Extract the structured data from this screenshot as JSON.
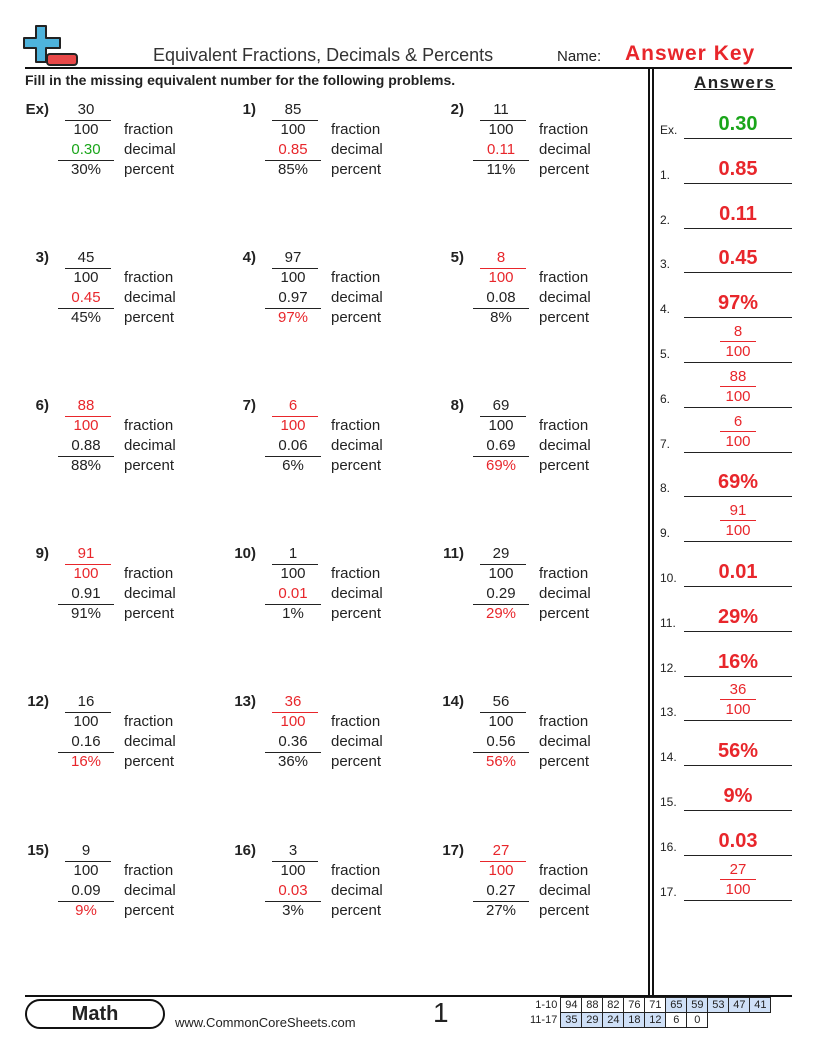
{
  "header": {
    "title": "Equivalent Fractions, Decimals & Percents",
    "name_label": "Name:",
    "name_value": "Answer Key",
    "logo": "plus-minus-logo"
  },
  "instructions": "Fill in the missing equivalent number for the following problems.",
  "words": {
    "fraction": "fraction",
    "decimal": "decimal",
    "percent": "percent"
  },
  "colors": {
    "answer": "#e8262b",
    "example": "#1aa51a",
    "score_highlight": "#cfe0f7"
  },
  "problems": [
    {
      "label": "Ex)",
      "num": "30",
      "den": "100",
      "dec": "0.30",
      "pct": "30%",
      "answer": "dec",
      "example": true
    },
    {
      "label": "1)",
      "num": "85",
      "den": "100",
      "dec": "0.85",
      "pct": "85%",
      "answer": "dec"
    },
    {
      "label": "2)",
      "num": "11",
      "den": "100",
      "dec": "0.11",
      "pct": "11%",
      "answer": "dec"
    },
    {
      "label": "3)",
      "num": "45",
      "den": "100",
      "dec": "0.45",
      "pct": "45%",
      "answer": "dec"
    },
    {
      "label": "4)",
      "num": "97",
      "den": "100",
      "dec": "0.97",
      "pct": "97%",
      "answer": "pct"
    },
    {
      "label": "5)",
      "num": "8",
      "den": "100",
      "dec": "0.08",
      "pct": "8%",
      "answer": "frac"
    },
    {
      "label": "6)",
      "num": "88",
      "den": "100",
      "dec": "0.88",
      "pct": "88%",
      "answer": "frac"
    },
    {
      "label": "7)",
      "num": "6",
      "den": "100",
      "dec": "0.06",
      "pct": "6%",
      "answer": "frac"
    },
    {
      "label": "8)",
      "num": "69",
      "den": "100",
      "dec": "0.69",
      "pct": "69%",
      "answer": "pct"
    },
    {
      "label": "9)",
      "num": "91",
      "den": "100",
      "dec": "0.91",
      "pct": "91%",
      "answer": "frac"
    },
    {
      "label": "10)",
      "num": "1",
      "den": "100",
      "dec": "0.01",
      "pct": "1%",
      "answer": "dec"
    },
    {
      "label": "11)",
      "num": "29",
      "den": "100",
      "dec": "0.29",
      "pct": "29%",
      "answer": "pct"
    },
    {
      "label": "12)",
      "num": "16",
      "den": "100",
      "dec": "0.16",
      "pct": "16%",
      "answer": "pct"
    },
    {
      "label": "13)",
      "num": "36",
      "den": "100",
      "dec": "0.36",
      "pct": "36%",
      "answer": "frac"
    },
    {
      "label": "14)",
      "num": "56",
      "den": "100",
      "dec": "0.56",
      "pct": "56%",
      "answer": "pct"
    },
    {
      "label": "15)",
      "num": "9",
      "den": "100",
      "dec": "0.09",
      "pct": "9%",
      "answer": "pct"
    },
    {
      "label": "16)",
      "num": "3",
      "den": "100",
      "dec": "0.03",
      "pct": "3%",
      "answer": "dec"
    },
    {
      "label": "17)",
      "num": "27",
      "den": "100",
      "dec": "0.27",
      "pct": "27%",
      "answer": "frac"
    }
  ],
  "answers": {
    "heading": "Answers",
    "items": [
      {
        "label": "Ex.",
        "value": "0.30"
      },
      {
        "label": "1.",
        "value": "0.85"
      },
      {
        "label": "2.",
        "value": "0.11"
      },
      {
        "label": "3.",
        "value": "0.45"
      },
      {
        "label": "4.",
        "value": "97%"
      },
      {
        "label": "5.",
        "num": "8",
        "den": "100"
      },
      {
        "label": "6.",
        "num": "88",
        "den": "100"
      },
      {
        "label": "7.",
        "num": "6",
        "den": "100"
      },
      {
        "label": "8.",
        "value": "69%"
      },
      {
        "label": "9.",
        "num": "91",
        "den": "100"
      },
      {
        "label": "10.",
        "value": "0.01"
      },
      {
        "label": "11.",
        "value": "29%"
      },
      {
        "label": "12.",
        "value": "16%"
      },
      {
        "label": "13.",
        "num": "36",
        "den": "100"
      },
      {
        "label": "14.",
        "value": "56%"
      },
      {
        "label": "15.",
        "value": "9%"
      },
      {
        "label": "16.",
        "value": "0.03"
      },
      {
        "label": "17.",
        "num": "27",
        "den": "100"
      }
    ]
  },
  "footer": {
    "subject": "Math",
    "site": "www.CommonCoreSheets.com",
    "page": "1",
    "score_rows": [
      {
        "label": "1-10",
        "cells": [
          "94",
          "88",
          "82",
          "76",
          "71",
          "65",
          "59",
          "53",
          "47",
          "41"
        ],
        "highlight_from": 5
      },
      {
        "label": "11-17",
        "cells": [
          "35",
          "29",
          "24",
          "18",
          "12",
          "6",
          "0"
        ],
        "highlight_to": 4
      }
    ]
  }
}
